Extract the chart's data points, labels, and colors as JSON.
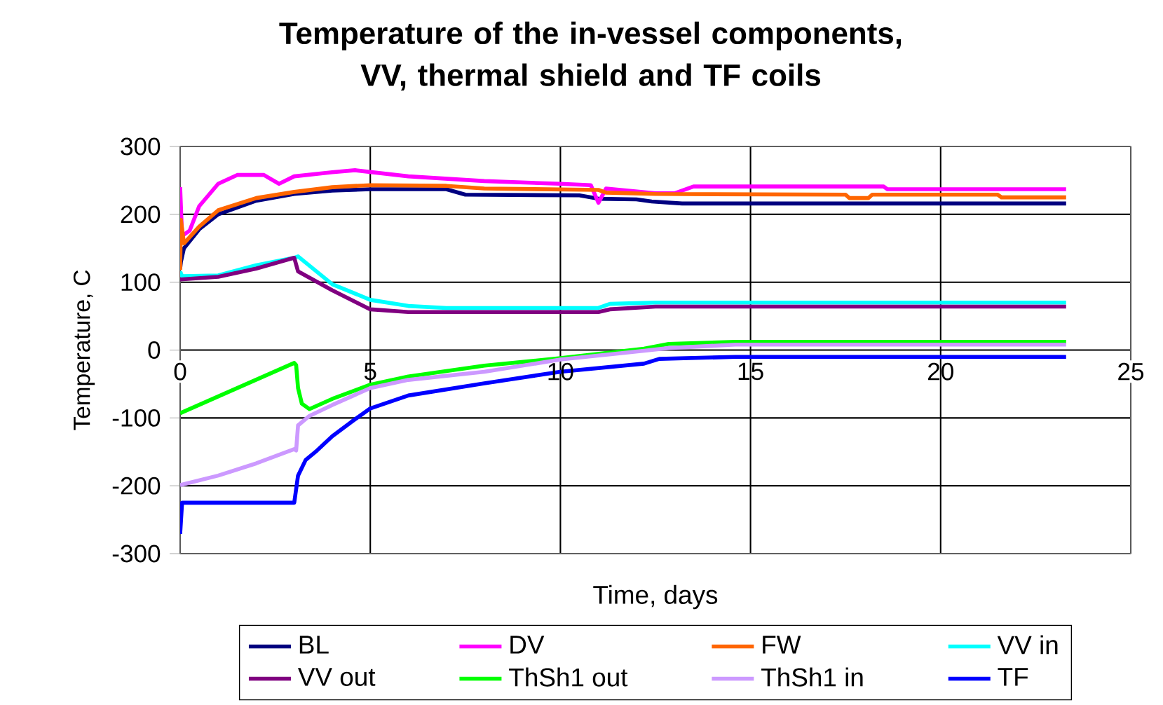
{
  "chart_data": {
    "type": "line",
    "title": "Temperature of the in-vessel components, VV, thermal shield and TF coils",
    "xlabel": "Time, days",
    "ylabel": "Temperature, C",
    "xlim": [
      0,
      25
    ],
    "xticks": [
      0,
      5,
      10,
      15,
      20,
      25
    ],
    "ylim": [
      -300,
      300
    ],
    "yticks": [
      -300,
      -200,
      -100,
      0,
      100,
      200,
      300
    ],
    "grid": true,
    "legend": "bottom",
    "line_style": "solid",
    "series": [
      {
        "name": "BL",
        "color": "#000080",
        "x": [
          0,
          0.02,
          0.1,
          0.5,
          1,
          2,
          3,
          4,
          5,
          7,
          7.5,
          10.5,
          11,
          12,
          12.4,
          13.2,
          23.3
        ],
        "values": [
          120,
          130,
          150,
          178,
          200,
          220,
          230,
          235,
          237,
          237,
          229,
          228,
          223,
          222,
          219,
          216,
          216
        ]
      },
      {
        "name": "DV",
        "color": "#ff00ff",
        "x": [
          0,
          0.05,
          0.25,
          0.5,
          1,
          1.5,
          2.2,
          2.6,
          3,
          4,
          4.6,
          6,
          8,
          10,
          10.8,
          11,
          11.2,
          12.5,
          13,
          13.5,
          18.5,
          18.6,
          23.3
        ],
        "values": [
          240,
          168,
          176,
          212,
          245,
          258,
          258,
          245,
          256,
          262,
          265,
          256,
          249,
          245,
          243,
          217,
          238,
          231,
          231,
          241,
          241,
          237,
          237
        ]
      },
      {
        "name": "FW",
        "color": "#ff6600",
        "x": [
          0,
          0.02,
          0.1,
          0.5,
          1,
          2,
          3,
          4,
          5,
          7,
          8,
          11,
          11.2,
          12.5,
          17.5,
          17.6,
          18.1,
          18.2,
          21.5,
          21.6,
          23.3
        ],
        "values": [
          118,
          192,
          157,
          182,
          206,
          224,
          233,
          240,
          243,
          242,
          238,
          236,
          232,
          230,
          229,
          224,
          224,
          229,
          229,
          225,
          225
        ]
      },
      {
        "name": "VV in",
        "color": "#00ffff",
        "x": [
          0,
          0.05,
          1,
          2,
          3,
          3.1,
          4,
          5,
          6,
          7,
          11,
          11.3,
          12.5,
          23.3
        ],
        "values": [
          116,
          109,
          110,
          125,
          136,
          138,
          97,
          74,
          65,
          62,
          62,
          68,
          70,
          70
        ]
      },
      {
        "name": "VV out",
        "color": "#800080",
        "x": [
          0,
          1,
          2,
          3,
          3.1,
          4,
          5,
          6,
          11,
          11.3,
          12.5,
          23.3
        ],
        "values": [
          104,
          108,
          120,
          136,
          116,
          88,
          60,
          56,
          56,
          60,
          64,
          64
        ]
      },
      {
        "name": "ThSh1 out",
        "color": "#00ff00",
        "x": [
          0,
          3,
          3.05,
          3.1,
          3.2,
          3.4,
          4,
          5,
          6,
          8,
          10,
          12.2,
          12.85,
          14.6,
          23.3
        ],
        "values": [
          -93,
          -19,
          -22,
          -56,
          -79,
          -87,
          -72,
          -51,
          -39,
          -23,
          -12,
          2,
          9,
          12,
          12
        ]
      },
      {
        "name": "ThSh1 in",
        "color": "#cc99ff",
        "x": [
          0,
          1,
          2,
          3,
          3.05,
          3.1,
          3.4,
          4,
          5,
          6,
          8,
          10,
          12.2,
          12.85,
          14.6,
          23.3
        ],
        "values": [
          -199,
          -185,
          -167,
          -146,
          -148,
          -111,
          -97,
          -81,
          -56,
          -44,
          -32,
          -14,
          -1,
          3,
          8,
          8
        ]
      },
      {
        "name": "TF",
        "color": "#0000ff",
        "x": [
          0,
          0.05,
          3,
          3.1,
          3.3,
          3.6,
          4,
          4.5,
          5,
          6,
          8,
          10,
          12.2,
          12.6,
          14.6,
          23.3
        ],
        "values": [
          -271,
          -225,
          -225,
          -185,
          -162,
          -148,
          -127,
          -106,
          -86,
          -67,
          -49,
          -32,
          -20,
          -13,
          -10,
          -10
        ]
      }
    ]
  }
}
